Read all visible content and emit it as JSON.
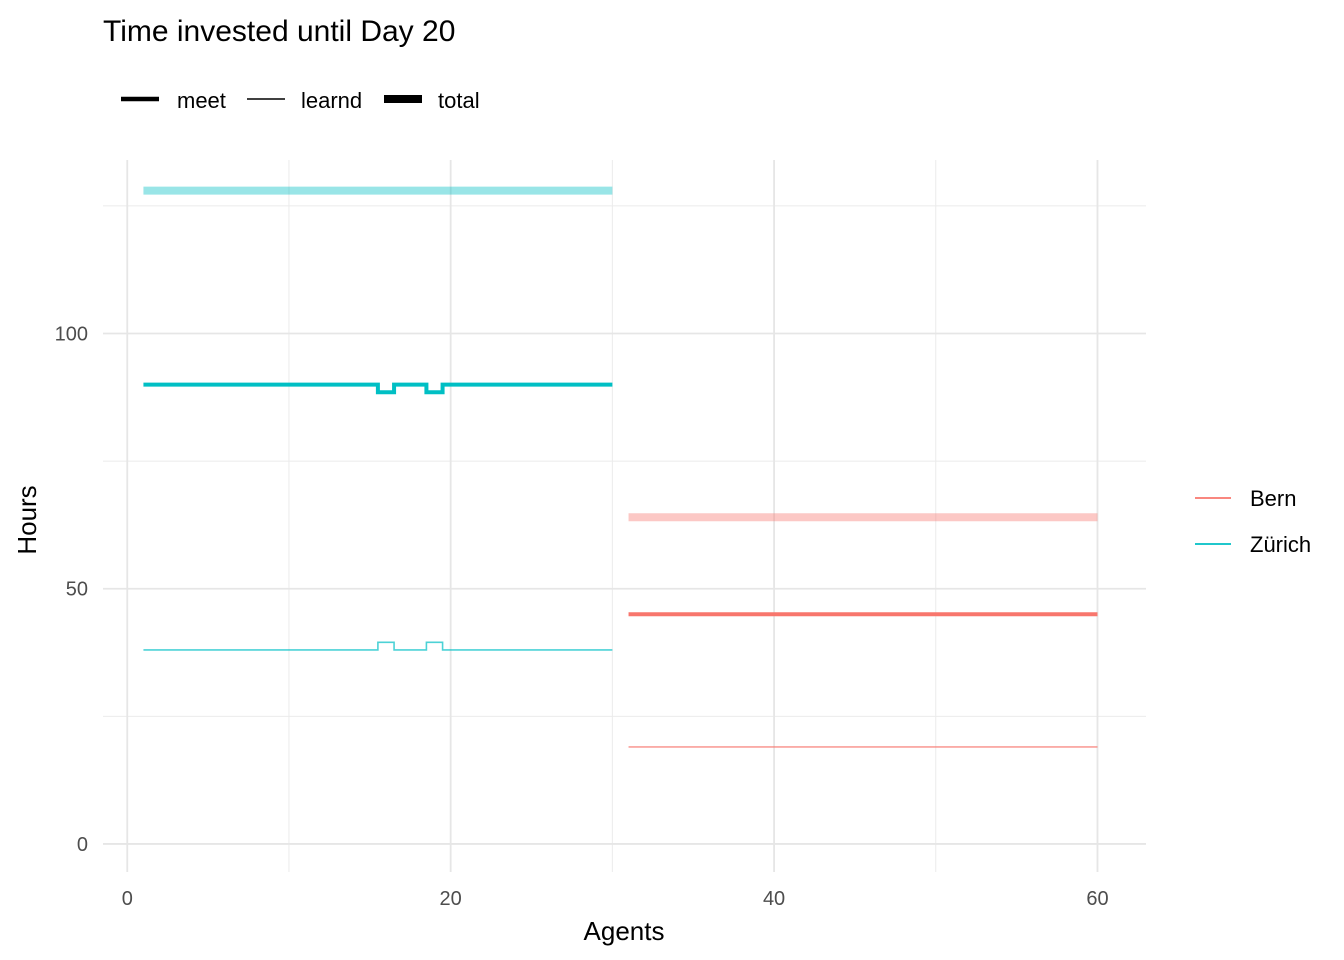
{
  "chart_data": {
    "type": "line",
    "title": "Time invested until Day 20",
    "xlabel": "Agents",
    "ylabel": "Hours",
    "xlim": [
      -1.5,
      63
    ],
    "ylim": [
      -5.5,
      134
    ],
    "x_ticks": [
      0,
      20,
      40,
      60
    ],
    "x_tick_labels": [
      "0",
      "20",
      "40",
      "60"
    ],
    "y_ticks": [
      0,
      50,
      100
    ],
    "y_tick_labels": [
      "0",
      "50",
      "100"
    ],
    "x_minor": [
      10,
      30,
      50
    ],
    "y_minor": [
      25,
      75,
      125
    ],
    "grid": true,
    "linetype_legend": {
      "position": "top-left",
      "items": [
        {
          "label": "meet",
          "weight": "medium"
        },
        {
          "label": "learnd",
          "weight": "thin"
        },
        {
          "label": "total",
          "weight": "thick"
        }
      ]
    },
    "color_legend": {
      "position": "right",
      "items": [
        {
          "label": "Bern",
          "color": "#F8766D"
        },
        {
          "label": "Zürich",
          "color": "#00BFC4"
        }
      ]
    },
    "series": [
      {
        "name": "Zürich total",
        "color": "#00BFC4",
        "kind": "total",
        "opacity": 0.4,
        "x": [
          1,
          30
        ],
        "y": [
          128,
          128
        ]
      },
      {
        "name": "Zürich meet",
        "color": "#00BFC4",
        "kind": "meet",
        "opacity": 1,
        "x": [
          1,
          15.5,
          15.5,
          16.5,
          16.5,
          18.5,
          18.5,
          19.5,
          19.5,
          30
        ],
        "y": [
          90,
          90,
          88.5,
          88.5,
          90,
          90,
          88.5,
          88.5,
          90,
          90
        ]
      },
      {
        "name": "Zürich learnd",
        "color": "#00BFC4",
        "kind": "learnd",
        "opacity": 0.7,
        "x": [
          1,
          15.5,
          15.5,
          16.5,
          16.5,
          18.5,
          18.5,
          19.5,
          19.5,
          30
        ],
        "y": [
          38,
          38,
          39.5,
          39.5,
          38,
          38,
          39.5,
          39.5,
          38,
          38
        ]
      },
      {
        "name": "Bern total",
        "color": "#F8766D",
        "kind": "total",
        "opacity": 0.4,
        "x": [
          31,
          60
        ],
        "y": [
          64,
          64
        ]
      },
      {
        "name": "Bern meet",
        "color": "#F8766D",
        "kind": "meet",
        "opacity": 1,
        "x": [
          31,
          60
        ],
        "y": [
          45,
          45
        ]
      },
      {
        "name": "Bern learnd",
        "color": "#F8766D",
        "kind": "learnd",
        "opacity": 0.7,
        "x": [
          31,
          60
        ],
        "y": [
          19,
          19
        ]
      }
    ]
  }
}
